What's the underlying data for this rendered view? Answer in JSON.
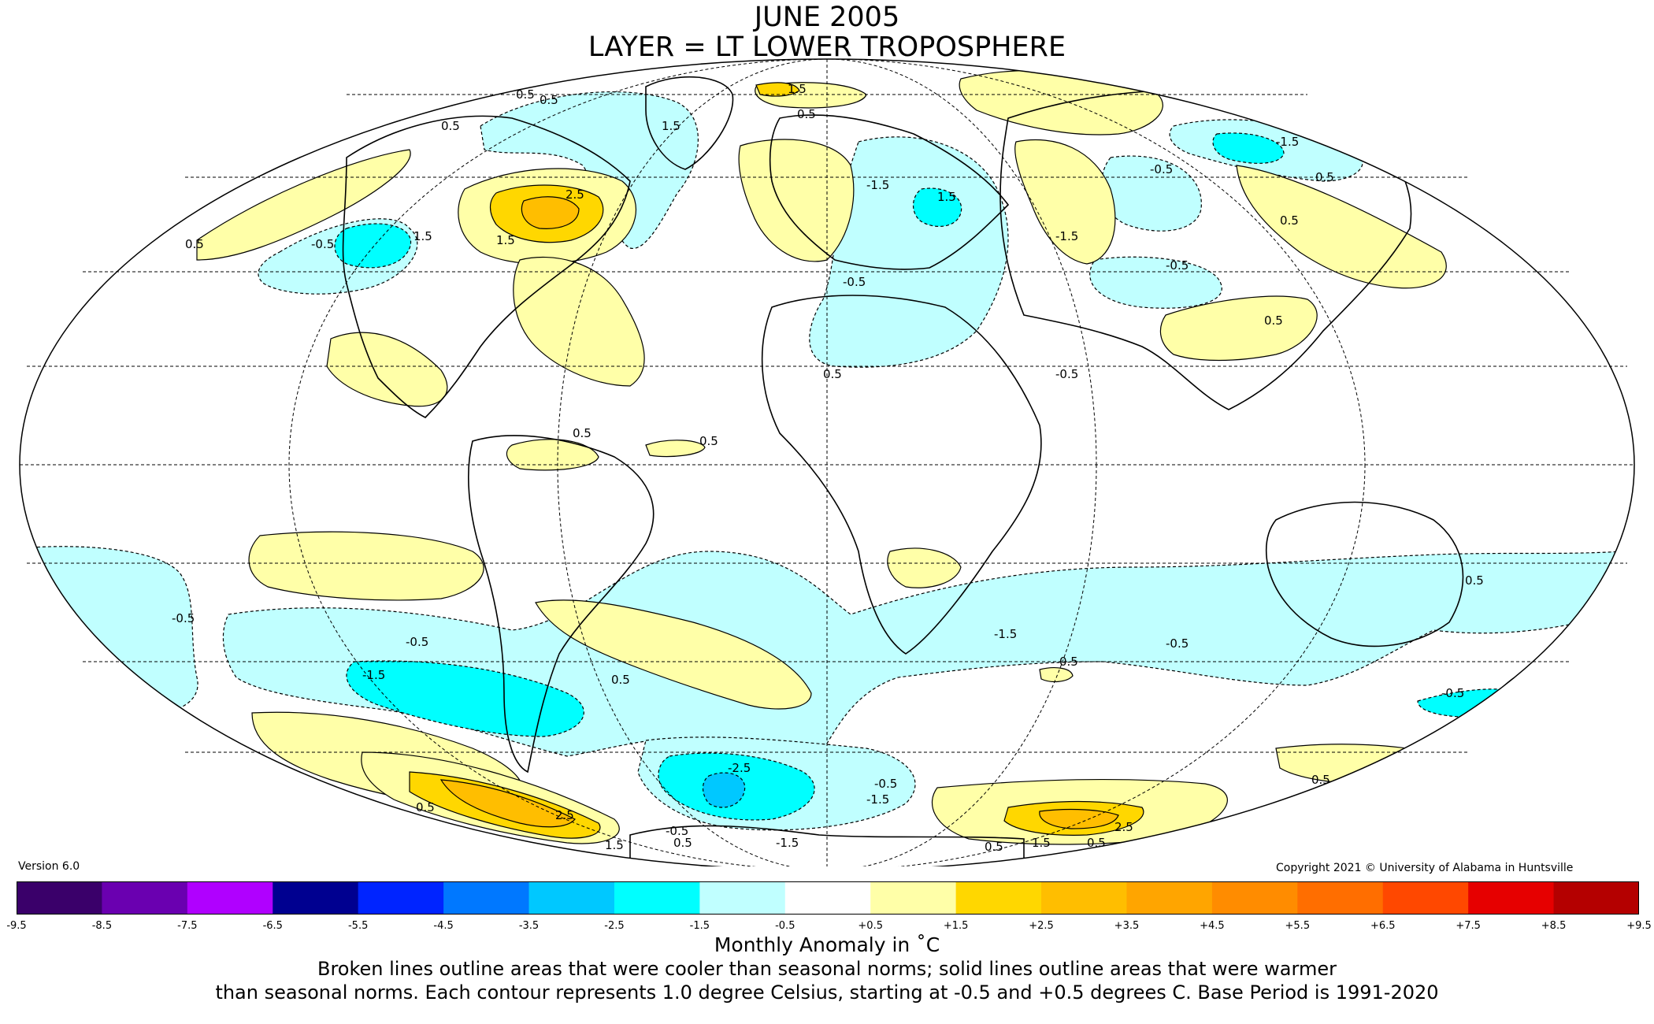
{
  "title": {
    "line1": "JUNE 2005",
    "line2": "LAYER = LT LOWER TROPOSPHERE"
  },
  "version": "Version 6.0",
  "copyright": "Copyright 2021 © University of Alabama in Huntsville",
  "colorbar": {
    "colors": [
      "#3a006a",
      "#6a00b0",
      "#b000ff",
      "#000090",
      "#0024ff",
      "#0078ff",
      "#00c8ff",
      "#00ffff",
      "#c0ffff",
      "#ffffff",
      "#ffffa8",
      "#ffd700",
      "#ffbe00",
      "#ffa500",
      "#ff8c00",
      "#ff6e00",
      "#ff4800",
      "#e60000",
      "#b40000"
    ],
    "ticks": [
      "-9.5",
      "-8.5",
      "-7.5",
      "-6.5",
      "-5.5",
      "-4.5",
      "-3.5",
      "-2.5",
      "-1.5",
      "-0.5",
      "+0.5",
      "+1.5",
      "+2.5",
      "+3.5",
      "+4.5",
      "+5.5",
      "+6.5",
      "+7.5",
      "+8.5",
      "+9.5"
    ]
  },
  "caption": {
    "line1": "Monthly Anomaly in ˚C",
    "line2": "Broken lines outline areas that were cooler than seasonal norms; solid lines outline areas that were warmer",
    "line3": "than seasonal norms. Each contour represents 1.0 degree Celsius, starting at -0.5 and +0.5 degrees C. Base Period is 1991-2020"
  },
  "map": {
    "contour_labels": [
      "0.5",
      "0.5",
      "1.5",
      "0.5",
      "0.5",
      "1.5",
      "2.5",
      "1.5",
      "1.5",
      "-0.5",
      "-1.5",
      "1.5",
      "-1.5",
      "0.5",
      "-0.5",
      "-0.5",
      "-1.5",
      "0.5",
      "0.5",
      "-0.5",
      "0.5",
      "0.5",
      "-0.5",
      "0.5",
      "0.5",
      "-0.5",
      "-1.5",
      "-0.5",
      "0.5",
      "-0.5",
      "0.5",
      "-0.5",
      "0.5",
      "-1.5",
      "-2.5",
      "-1.5",
      "-1.5",
      "0.5",
      "2.5",
      "0.5",
      "1.5",
      "-0.5",
      "-0.5",
      "0.5",
      "1.5",
      "0.5",
      "2.5",
      "0.5"
    ]
  }
}
